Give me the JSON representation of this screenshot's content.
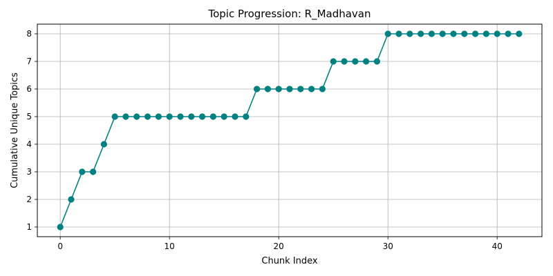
{
  "chart_data": {
    "type": "line",
    "title": "Topic Progression: R_Madhavan",
    "xlabel": "Chunk Index",
    "ylabel": "Cumulative Unique Topics",
    "x": [
      0,
      1,
      2,
      3,
      4,
      5,
      6,
      7,
      8,
      9,
      10,
      11,
      12,
      13,
      14,
      15,
      16,
      17,
      18,
      19,
      20,
      21,
      22,
      23,
      24,
      25,
      26,
      27,
      28,
      29,
      30,
      31,
      32,
      33,
      34,
      35,
      36,
      37,
      38,
      39,
      40,
      41,
      42
    ],
    "series": [
      {
        "values": [
          1,
          2,
          3,
          3,
          4,
          5,
          5,
          5,
          5,
          5,
          5,
          5,
          5,
          5,
          5,
          5,
          5,
          5,
          6,
          6,
          6,
          6,
          6,
          6,
          6,
          7,
          7,
          7,
          7,
          7,
          8,
          8,
          8,
          8,
          8,
          8,
          8,
          8,
          8,
          8,
          8,
          8,
          8
        ],
        "color": "#008080",
        "marker": "circle"
      }
    ],
    "xlim": [
      -2.1,
      44.1
    ],
    "ylim": [
      0.65,
      8.35
    ],
    "xticks": [
      0,
      10,
      20,
      30,
      40
    ],
    "yticks": [
      1,
      2,
      3,
      4,
      5,
      6,
      7,
      8
    ],
    "grid": true,
    "grid_color": "#b0b0b0"
  }
}
